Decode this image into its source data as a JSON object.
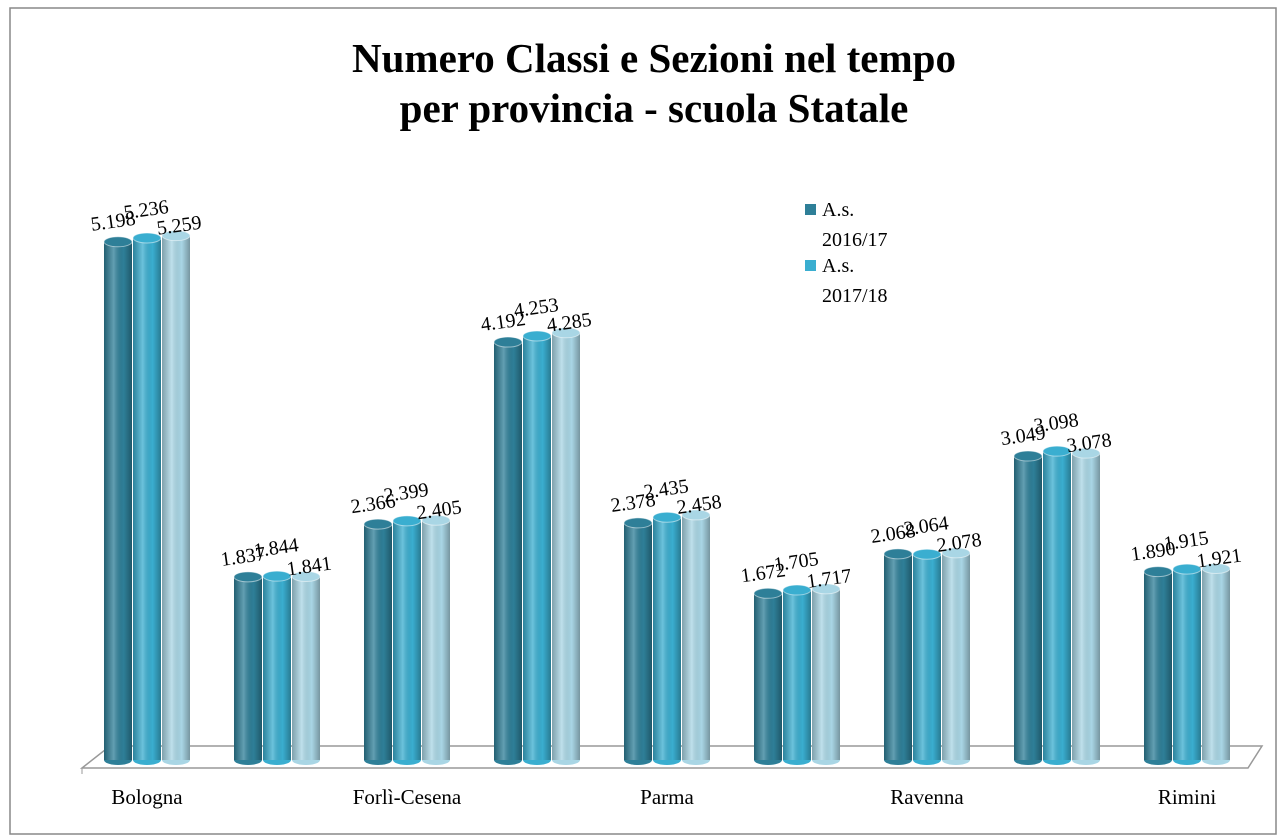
{
  "chart_data": {
    "type": "bar",
    "title": [
      "Numero Classi e Sezioni nel tempo",
      "per provincia - scuola Statale"
    ],
    "categories": [
      "Bologna",
      null,
      "Forlì-Cesena",
      null,
      "Parma",
      null,
      "Ravenna",
      null,
      "Rimini"
    ],
    "series": [
      {
        "name": "A.s. 2016/17",
        "color": "#2e7f98",
        "values": [
          5198,
          1837,
          2366,
          4192,
          2378,
          1672,
          2068,
          3049,
          1890
        ],
        "value_labels": [
          "5.198",
          "1.837",
          "2.366",
          "4.192",
          "2.378",
          "1.672",
          "2.068",
          "3.049",
          "1.890"
        ]
      },
      {
        "name": "A.s. 2017/18",
        "color": "#3aaed0",
        "values": [
          5236,
          1844,
          2399,
          4253,
          2435,
          1705,
          2064,
          3098,
          1915
        ],
        "value_labels": [
          "5.236",
          "1.844",
          "2.399",
          "4.253",
          "2.435",
          "1.705",
          "2.064",
          "3.098",
          "1.915"
        ]
      },
      {
        "name": null,
        "color": "#a9d6e5",
        "values": [
          5259,
          1841,
          2405,
          4285,
          2458,
          1717,
          2078,
          3078,
          1921
        ],
        "value_labels": [
          "5.259",
          "1.841",
          "2.405",
          "4.285",
          "2.458",
          "1.717",
          "2.078",
          "3.078",
          "1.921"
        ]
      }
    ]
  }
}
